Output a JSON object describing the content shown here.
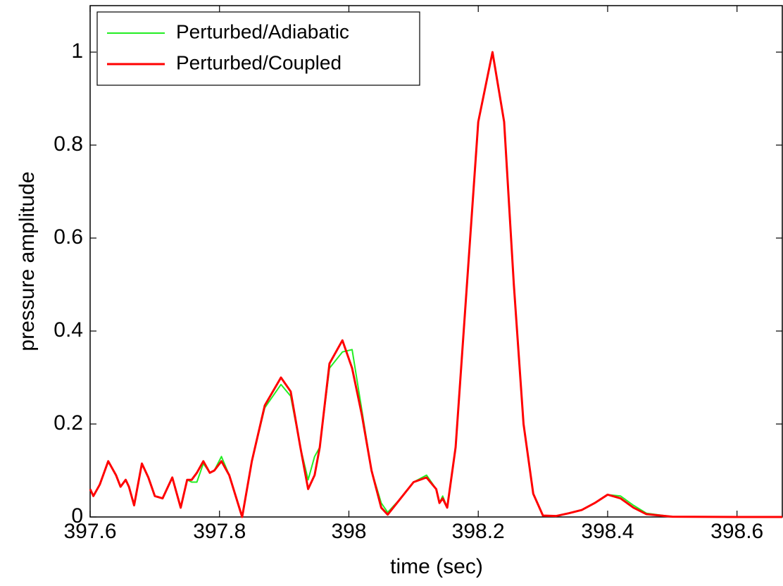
{
  "chart_data": {
    "type": "line",
    "x_label": "time (sec)",
    "y_label": "pressure amplitude",
    "x": [
      397.6,
      397.605,
      397.615,
      397.628,
      397.64,
      397.647,
      397.655,
      397.66,
      397.668,
      397.68,
      397.69,
      397.7,
      397.712,
      397.727,
      397.74,
      397.75,
      397.757,
      397.765,
      397.775,
      397.785,
      397.792,
      397.803,
      397.815,
      397.835,
      397.85,
      397.87,
      397.895,
      397.91,
      397.925,
      397.937,
      397.947,
      397.955,
      397.97,
      397.99,
      398.005,
      398.02,
      398.035,
      398.05,
      398.06,
      398.08,
      398.1,
      398.12,
      398.135,
      398.14,
      398.145,
      398.152,
      398.165,
      398.18,
      398.2,
      398.222,
      398.24,
      398.255,
      398.27,
      398.285,
      398.3,
      398.32,
      398.34,
      398.36,
      398.38,
      398.4,
      398.42,
      398.44,
      398.46,
      398.5,
      398.6,
      398.67
    ],
    "series": [
      {
        "name": "Perturbed/Adiabatic",
        "color": "#22ee22",
        "width": 2,
        "values": [
          0.06,
          0.045,
          0.07,
          0.12,
          0.09,
          0.065,
          0.08,
          0.065,
          0.025,
          0.115,
          0.085,
          0.045,
          0.04,
          0.085,
          0.02,
          0.08,
          0.075,
          0.075,
          0.115,
          0.095,
          0.1,
          0.13,
          0.09,
          0.0,
          0.12,
          0.235,
          0.285,
          0.26,
          0.15,
          0.08,
          0.13,
          0.15,
          0.32,
          0.355,
          0.36,
          0.23,
          0.1,
          0.03,
          0.01,
          0.04,
          0.075,
          0.09,
          0.06,
          0.03,
          0.045,
          0.02,
          0.15,
          0.45,
          0.85,
          1.0,
          0.85,
          0.5,
          0.2,
          0.05,
          0.003,
          0.002,
          0.008,
          0.015,
          0.03,
          0.048,
          0.045,
          0.025,
          0.008,
          0.0005,
          0,
          0
        ]
      },
      {
        "name": "Perturbed/Coupled",
        "color": "#ff0000",
        "width": 3,
        "values": [
          0.06,
          0.045,
          0.07,
          0.12,
          0.09,
          0.065,
          0.08,
          0.065,
          0.025,
          0.115,
          0.085,
          0.045,
          0.04,
          0.085,
          0.02,
          0.08,
          0.08,
          0.095,
          0.12,
          0.095,
          0.1,
          0.12,
          0.09,
          0.0,
          0.12,
          0.24,
          0.3,
          0.27,
          0.15,
          0.06,
          0.09,
          0.15,
          0.33,
          0.38,
          0.32,
          0.22,
          0.1,
          0.02,
          0.005,
          0.04,
          0.075,
          0.085,
          0.06,
          0.03,
          0.04,
          0.02,
          0.15,
          0.45,
          0.85,
          1.0,
          0.85,
          0.5,
          0.2,
          0.05,
          0.003,
          0.002,
          0.008,
          0.015,
          0.03,
          0.048,
          0.04,
          0.02,
          0.006,
          0.0005,
          0,
          0
        ]
      }
    ],
    "xlim": [
      397.6,
      398.67
    ],
    "ylim": [
      0,
      1.1
    ],
    "xticks": [
      397.6,
      397.8,
      398,
      398.2,
      398.4,
      398.6
    ],
    "yticks": [
      0,
      0.2,
      0.4,
      0.6,
      0.8,
      1
    ],
    "legend": "upper left"
  }
}
